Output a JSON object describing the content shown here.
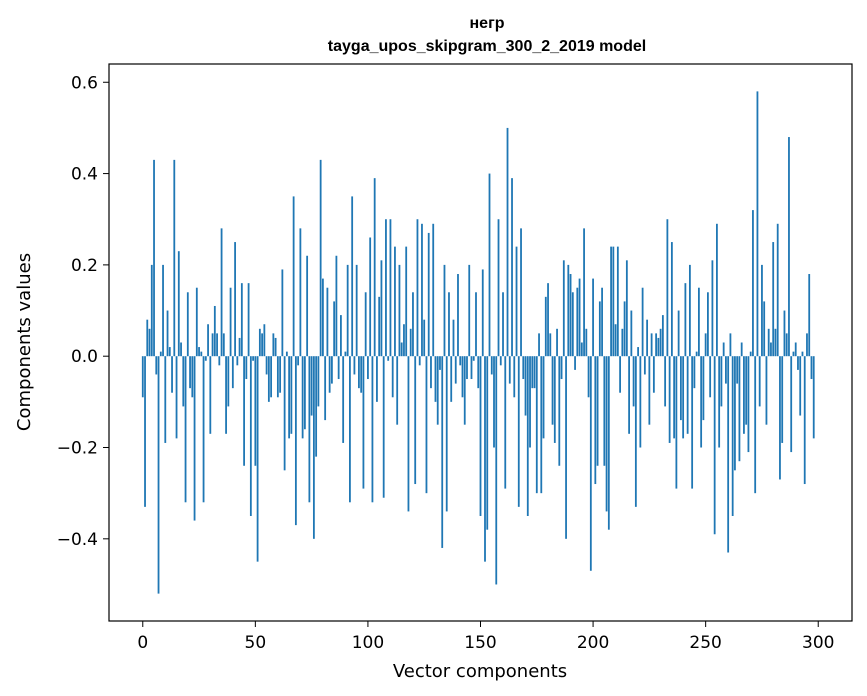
{
  "chart_data": {
    "type": "bar",
    "title": "негр",
    "subtitle": "tayga_upos_skipgram_300_2_2019 model",
    "xlabel": "Vector components",
    "ylabel": "Components values",
    "xlim": [
      -15,
      315
    ],
    "ylim": [
      -0.58,
      0.64
    ],
    "xticks": [
      0,
      50,
      100,
      150,
      200,
      250,
      300
    ],
    "yticks": [
      -0.4,
      -0.2,
      0.0,
      0.2,
      0.4,
      0.6
    ],
    "ytick_labels": [
      "−0.4",
      "−0.2",
      "0.0",
      "0.2",
      "0.4",
      "0.6"
    ],
    "grid": false,
    "bar_color": "#1f77b4",
    "values": [
      -0.09,
      -0.33,
      0.08,
      0.06,
      0.2,
      0.43,
      -0.04,
      -0.52,
      0.01,
      0.2,
      -0.19,
      0.1,
      0.02,
      -0.08,
      0.43,
      -0.18,
      0.23,
      0.03,
      -0.11,
      -0.32,
      0.14,
      -0.07,
      -0.09,
      -0.36,
      0.15,
      0.02,
      0.01,
      -0.32,
      -0.01,
      0.07,
      -0.17,
      0.05,
      0.11,
      0.05,
      -0.02,
      0.28,
      0.05,
      -0.17,
      -0.11,
      0.15,
      -0.07,
      0.25,
      -0.02,
      0.04,
      0.16,
      -0.24,
      -0.05,
      0.16,
      -0.35,
      -0.01,
      -0.24,
      -0.45,
      0.06,
      0.05,
      0.07,
      -0.04,
      -0.1,
      -0.09,
      0.05,
      0.04,
      -0.09,
      -0.08,
      0.19,
      -0.25,
      0.01,
      -0.18,
      -0.17,
      0.35,
      -0.37,
      -0.02,
      0.28,
      -0.18,
      -0.16,
      0.22,
      -0.32,
      -0.13,
      -0.4,
      -0.22,
      -0.11,
      0.43,
      0.17,
      -0.14,
      0.15,
      -0.08,
      -0.06,
      0.12,
      0.22,
      -0.05,
      0.09,
      -0.19,
      0.01,
      0.2,
      -0.32,
      0.35,
      -0.04,
      0.2,
      -0.07,
      -0.08,
      -0.29,
      0.14,
      -0.05,
      0.26,
      -0.32,
      0.39,
      -0.1,
      0.13,
      0.21,
      -0.31,
      0.3,
      -0.01,
      0.3,
      -0.09,
      0.24,
      -0.15,
      0.2,
      0.03,
      0.07,
      0.24,
      -0.34,
      0.06,
      0.14,
      -0.28,
      0.3,
      -0.02,
      0.29,
      0.08,
      -0.3,
      0.27,
      -0.07,
      0.29,
      -0.1,
      -0.15,
      -0.03,
      -0.42,
      0.2,
      -0.34,
      0.14,
      -0.1,
      0.08,
      -0.06,
      0.18,
      -0.02,
      -0.09,
      -0.15,
      -0.05,
      0.2,
      -0.05,
      -0.01,
      0.14,
      -0.07,
      -0.35,
      0.19,
      -0.45,
      -0.38,
      0.4,
      -0.04,
      -0.2,
      -0.5,
      0.3,
      -0.02,
      0.14,
      -0.29,
      0.5,
      -0.06,
      0.39,
      -0.09,
      0.24,
      -0.33,
      0.28,
      -0.05,
      -0.13,
      -0.35,
      -0.2,
      -0.07,
      -0.07,
      -0.3,
      0.05,
      -0.3,
      -0.18,
      0.13,
      0.16,
      0.05,
      -0.15,
      -0.19,
      0.06,
      -0.24,
      -0.05,
      0.21,
      -0.4,
      0.2,
      0.18,
      0.14,
      -0.03,
      0.15,
      0.17,
      0.03,
      0.28,
      0.06,
      -0.09,
      -0.47,
      0.17,
      -0.28,
      -0.24,
      0.12,
      0.15,
      -0.24,
      -0.34,
      -0.38,
      0.24,
      0.24,
      0.07,
      0.24,
      -0.08,
      0.06,
      0.12,
      0.21,
      -0.17,
      0.1,
      -0.11,
      -0.33,
      0.02,
      -0.2,
      0.15,
      -0.04,
      0.08,
      -0.15,
      0.05,
      -0.08,
      0.05,
      0.04,
      0.06,
      0.09,
      -0.11,
      0.3,
      -0.19,
      0.25,
      -0.18,
      -0.29,
      0.1,
      -0.14,
      -0.18,
      0.16,
      -0.17,
      0.2,
      -0.29,
      -0.07,
      0.01,
      0.15,
      -0.2,
      -0.14,
      0.05,
      0.14,
      -0.09,
      0.21,
      -0.39,
      0.29,
      -0.2,
      -0.11,
      0.03,
      -0.06,
      -0.43,
      0.05,
      -0.35,
      -0.25,
      -0.06,
      -0.23,
      0.03,
      -0.17,
      -0.15,
      -0.21,
      0.01,
      0.32,
      -0.3,
      0.58,
      -0.11,
      0.2,
      0.12,
      -0.15,
      0.06,
      0.03,
      0.25,
      0.06,
      0.29,
      -0.27,
      -0.19,
      0.1,
      0.05,
      0.48,
      -0.21,
      0.01,
      0.03,
      -0.03,
      -0.13,
      0.01,
      -0.28,
      0.05,
      0.18,
      -0.05,
      -0.18
    ]
  }
}
